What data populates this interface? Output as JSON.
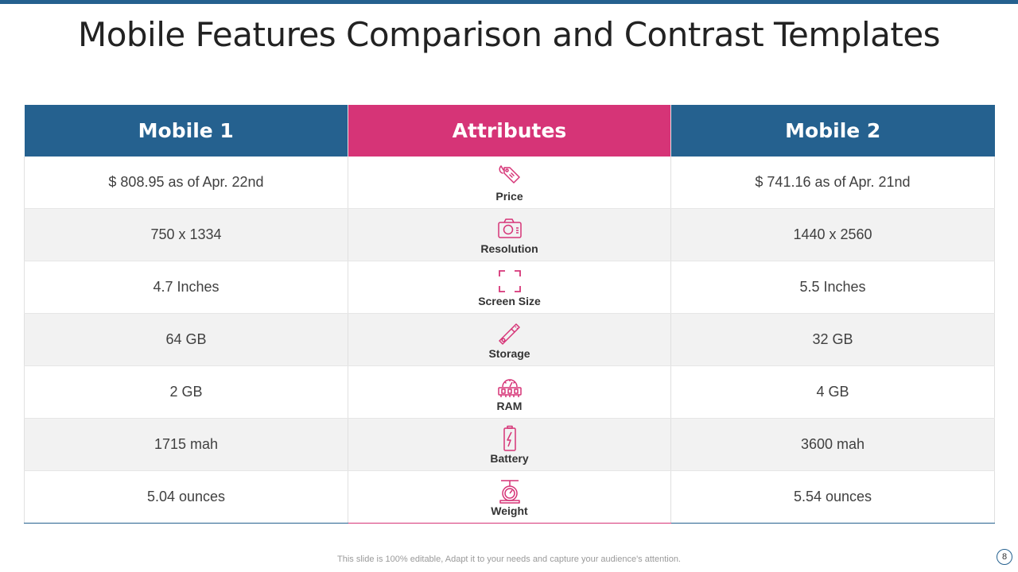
{
  "slide": {
    "title": "Mobile Features Comparison and Contrast Templates",
    "footer": "This slide is 100% editable, Adapt it to your needs and capture your audience's attention.",
    "page_number": "8",
    "colors": {
      "blue": "#25618f",
      "pink": "#d63477"
    }
  },
  "table": {
    "headers": [
      "Mobile 1",
      "Attributes",
      "Mobile 2"
    ],
    "rows": [
      {
        "mobile1": "$ 808.95 as of Apr. 22nd",
        "attribute": "Price",
        "icon": "price-tag-icon",
        "mobile2": "$ 741.16 as of Apr. 21nd"
      },
      {
        "mobile1": "750 x 1334",
        "attribute": "Resolution",
        "icon": "camera-icon",
        "mobile2": "1440 x 2560"
      },
      {
        "mobile1": "4.7 Inches",
        "attribute": "Screen Size",
        "icon": "fullscreen-corners-icon",
        "mobile2": "5.5 Inches"
      },
      {
        "mobile1": "64 GB",
        "attribute": "Storage",
        "icon": "usb-drive-icon",
        "mobile2": "32 GB"
      },
      {
        "mobile1": "2 GB",
        "attribute": "RAM",
        "icon": "ram-chip-icon",
        "mobile2": "4 GB"
      },
      {
        "mobile1": "1715 mah",
        "attribute": "Battery",
        "icon": "battery-icon",
        "mobile2": "3600 mah"
      },
      {
        "mobile1": "5.04 ounces",
        "attribute": "Weight",
        "icon": "weight-scale-icon",
        "mobile2": "5.54 ounces"
      }
    ]
  }
}
